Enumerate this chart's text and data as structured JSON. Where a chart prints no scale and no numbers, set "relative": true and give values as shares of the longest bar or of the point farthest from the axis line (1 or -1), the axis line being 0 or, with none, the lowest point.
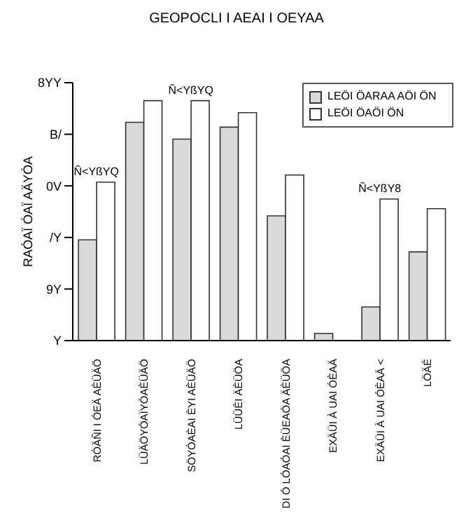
{
  "chart_data": {
    "type": "bar",
    "title": "GEOPOCLI I AEAI I OEYAA",
    "ylabel": "RAÓAÏ ÓAÏ AÄYÓA",
    "relative": true,
    "categories": [
      "RÓÄÑI I ÓEÄ AÈÜÄÖ",
      "LÜÄÖYÓAÏYÓAÈÜÄÖ",
      "SÖYÓAÈAI ÈYI AÈÜÄÖ",
      "LÜÜÈI ÄÈÜÖA",
      "DI Ó LÓAÓAI ÈÜEAÓA ÄÈÜÖA",
      "EXÄÜI À UAI ÓÈAÄ",
      "EXÄÜI À UAI ÓÈAÄ <",
      "LÖÄÉ"
    ],
    "series": [
      {
        "name": "LEÖI ÖARAA AÖI ÖN",
        "color": "#d9d9d9",
        "values": [
          0.42,
          0.91,
          0.84,
          0.89,
          0.52,
          0.03,
          0.14,
          0.37
        ]
      },
      {
        "name": "LEÖI ÖAÖI ÖN",
        "color": "#ffffff",
        "values": [
          0.66,
          1,
          1,
          0.95,
          0.69,
          0,
          0.59,
          0.55
        ]
      }
    ],
    "annotations": [
      "Y",
      "9Y",
      "/Y",
      "0V",
      "B/",
      "8YY",
      {
        "text": "Ñ<YßYQ",
        "x": "RÓÄÑI I ÓEÄ AÈÜÄÖ",
        "y": 0.66
      },
      {
        "text": "Ñ<YßYQ",
        "x": "SÖYÓAÈAI ÈYI AÈÜÄÖ",
        "y": 1
      },
      {
        "text": "Ñ<YßY8",
        "x": "EXÄÜI À UAI ÓÈAÄ <",
        "y": 0.59
      }
    ],
    "legend": "top right"
  }
}
